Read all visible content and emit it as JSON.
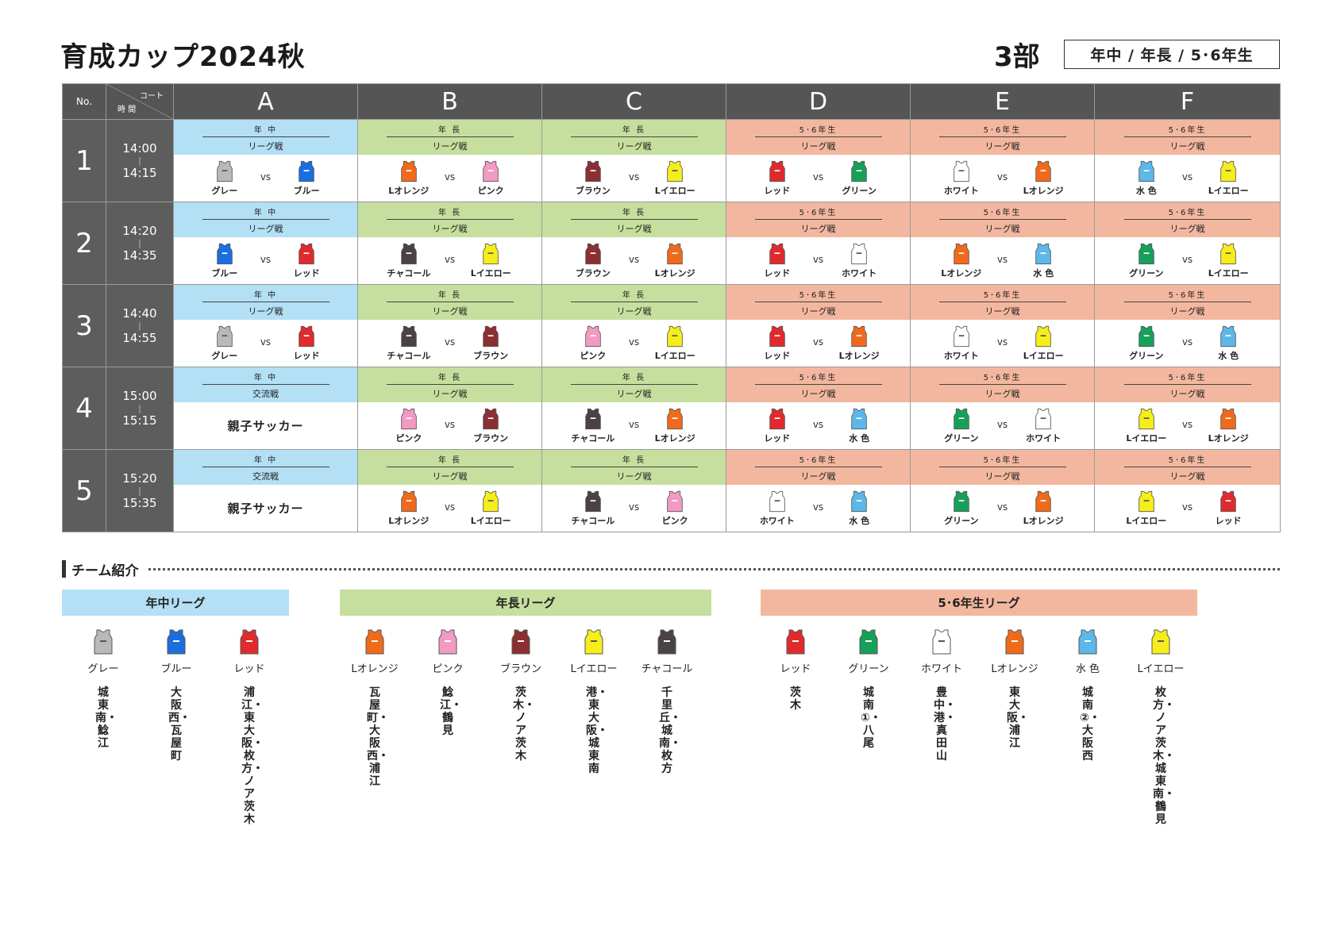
{
  "header": {
    "title": "育成カップ2024秋",
    "division": "3部",
    "grades": "年中 / 年長 / 5･6年生"
  },
  "table": {
    "no_label": "No.",
    "court_label": "コート",
    "time_label": "時 間",
    "courts": [
      "A",
      "B",
      "C",
      "D",
      "E",
      "F"
    ],
    "rows": [
      {
        "no": "1",
        "start": "14:00",
        "end": "14:15",
        "slots": [
          {
            "grade": "年 中",
            "type": "リーグ戦",
            "bg": "nc",
            "home": "グレー",
            "away": "ブルー"
          },
          {
            "grade": "年 長",
            "type": "リーグ戦",
            "bg": "nt",
            "home": "Lオレンジ",
            "away": "ピンク"
          },
          {
            "grade": "年 長",
            "type": "リーグ戦",
            "bg": "nt",
            "home": "ブラウン",
            "away": "Lイエロー"
          },
          {
            "grade": "5･6年生",
            "type": "リーグ戦",
            "bg": "56",
            "home": "レッド",
            "away": "グリーン"
          },
          {
            "grade": "5･6年生",
            "type": "リーグ戦",
            "bg": "56",
            "home": "ホワイト",
            "away": "Lオレンジ"
          },
          {
            "grade": "5･6年生",
            "type": "リーグ戦",
            "bg": "56",
            "home": "水 色",
            "away": "Lイエロー"
          }
        ]
      },
      {
        "no": "2",
        "start": "14:20",
        "end": "14:35",
        "slots": [
          {
            "grade": "年 中",
            "type": "リーグ戦",
            "bg": "nc",
            "home": "ブルー",
            "away": "レッド"
          },
          {
            "grade": "年 長",
            "type": "リーグ戦",
            "bg": "nt",
            "home": "チャコール",
            "away": "Lイエロー"
          },
          {
            "grade": "年 長",
            "type": "リーグ戦",
            "bg": "nt",
            "home": "ブラウン",
            "away": "Lオレンジ"
          },
          {
            "grade": "5･6年生",
            "type": "リーグ戦",
            "bg": "56",
            "home": "レッド",
            "away": "ホワイト"
          },
          {
            "grade": "5･6年生",
            "type": "リーグ戦",
            "bg": "56",
            "home": "Lオレンジ",
            "away": "水 色"
          },
          {
            "grade": "5･6年生",
            "type": "リーグ戦",
            "bg": "56",
            "home": "グリーン",
            "away": "Lイエロー"
          }
        ]
      },
      {
        "no": "3",
        "start": "14:40",
        "end": "14:55",
        "slots": [
          {
            "grade": "年 中",
            "type": "リーグ戦",
            "bg": "nc",
            "home": "グレー",
            "away": "レッド"
          },
          {
            "grade": "年 長",
            "type": "リーグ戦",
            "bg": "nt",
            "home": "チャコール",
            "away": "ブラウン"
          },
          {
            "grade": "年 長",
            "type": "リーグ戦",
            "bg": "nt",
            "home": "ピンク",
            "away": "Lイエロー"
          },
          {
            "grade": "5･6年生",
            "type": "リーグ戦",
            "bg": "56",
            "home": "レッド",
            "away": "Lオレンジ"
          },
          {
            "grade": "5･6年生",
            "type": "リーグ戦",
            "bg": "56",
            "home": "ホワイト",
            "away": "Lイエロー"
          },
          {
            "grade": "5･6年生",
            "type": "リーグ戦",
            "bg": "56",
            "home": "グリーン",
            "away": "水 色"
          }
        ]
      },
      {
        "no": "4",
        "start": "15:00",
        "end": "15:15",
        "slots": [
          {
            "grade": "年 中",
            "type": "交流戦",
            "bg": "nc",
            "special": "親子サッカー"
          },
          {
            "grade": "年 長",
            "type": "リーグ戦",
            "bg": "nt",
            "home": "ピンク",
            "away": "ブラウン"
          },
          {
            "grade": "年 長",
            "type": "リーグ戦",
            "bg": "nt",
            "home": "チャコール",
            "away": "Lオレンジ"
          },
          {
            "grade": "5･6年生",
            "type": "リーグ戦",
            "bg": "56",
            "home": "レッド",
            "away": "水 色"
          },
          {
            "grade": "5･6年生",
            "type": "リーグ戦",
            "bg": "56",
            "home": "グリーン",
            "away": "ホワイト"
          },
          {
            "grade": "5･6年生",
            "type": "リーグ戦",
            "bg": "56",
            "home": "Lイエロー",
            "away": "Lオレンジ"
          }
        ]
      },
      {
        "no": "5",
        "start": "15:20",
        "end": "15:35",
        "slots": [
          {
            "grade": "年 中",
            "type": "交流戦",
            "bg": "nc",
            "special": "親子サッカー"
          },
          {
            "grade": "年 長",
            "type": "リーグ戦",
            "bg": "nt",
            "home": "Lオレンジ",
            "away": "Lイエロー"
          },
          {
            "grade": "年 長",
            "type": "リーグ戦",
            "bg": "nt",
            "home": "チャコール",
            "away": "ピンク"
          },
          {
            "grade": "5･6年生",
            "type": "リーグ戦",
            "bg": "56",
            "home": "ホワイト",
            "away": "水 色"
          },
          {
            "grade": "5･6年生",
            "type": "リーグ戦",
            "bg": "56",
            "home": "グリーン",
            "away": "Lオレンジ"
          },
          {
            "grade": "5･6年生",
            "type": "リーグ戦",
            "bg": "56",
            "home": "Lイエロー",
            "away": "レッド"
          }
        ]
      }
    ]
  },
  "vs_label": "vs",
  "bib_colors": {
    "グレー": "#b9b9b9",
    "ブルー": "#1a6fe0",
    "レッド": "#e02a2e",
    "Lオレンジ": "#f06a1c",
    "ピンク": "#f39ac3",
    "ブラウン": "#8c2f32",
    "Lイエロー": "#f5ee1a",
    "チャコール": "#4a4243",
    "グリーン": "#17a05a",
    "ホワイト": "#ffffff",
    "水 色": "#5cb8e8"
  },
  "intro": {
    "heading": "チーム紹介",
    "leagues": [
      {
        "name": "年中リーグ",
        "bg": "nc",
        "teams": [
          {
            "color": "グレー",
            "schools": "城東南・鯰江"
          },
          {
            "color": "ブルー",
            "schools": "大阪西・瓦屋町"
          },
          {
            "color": "レッド",
            "schools": "浦江・東大阪・枚方・ノア茨木"
          }
        ]
      },
      {
        "name": "年長リーグ",
        "bg": "nt",
        "teams": [
          {
            "color": "Lオレンジ",
            "schools": "瓦屋町・大阪西・浦江"
          },
          {
            "color": "ピンク",
            "schools": "鯰江・鶴見"
          },
          {
            "color": "ブラウン",
            "schools": "茨木・ノア茨木"
          },
          {
            "color": "Lイエロー",
            "schools": "港・東大阪・城東南"
          },
          {
            "color": "チャコール",
            "schools": "千里丘・城南・枚方"
          }
        ]
      },
      {
        "name": "5･6年生リーグ",
        "bg": "56",
        "teams": [
          {
            "color": "レッド",
            "schools": "茨木"
          },
          {
            "color": "グリーン",
            "schools": "城南①・八尾"
          },
          {
            "color": "ホワイト",
            "schools": "豊中・港・真田山"
          },
          {
            "color": "Lオレンジ",
            "schools": "東大阪・浦江"
          },
          {
            "color": "水 色",
            "schools": "城南②・大阪西"
          },
          {
            "color": "Lイエロー",
            "schools": "枚方・ノア茨木・城東南・鶴見"
          }
        ]
      }
    ]
  }
}
